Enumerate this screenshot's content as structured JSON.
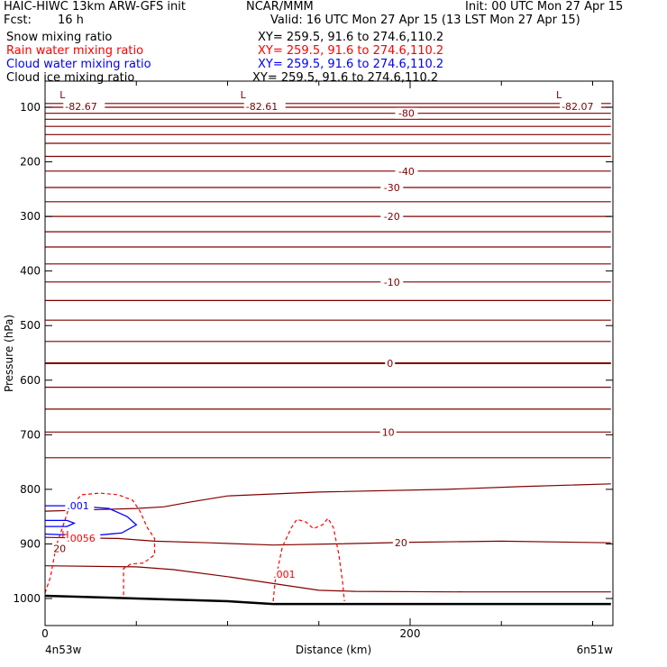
{
  "header": {
    "title_left": "HAIC-HIWC 13km ARW-GFS init",
    "org": "NCAR/MMM",
    "init": "Init: 00 UTC Mon 27 Apr 15",
    "fcst_label": "Fcst:",
    "fcst_value": "16 h",
    "valid": "Valid: 16 UTC Mon 27 Apr 15 (13 LST Mon 27 Apr 15)",
    "fields": [
      {
        "name": "Snow mixing ratio",
        "xy": "XY= 259.5, 91.6 to 274.6,110.2",
        "color": "#000000"
      },
      {
        "name": "Rain water mixing ratio",
        "xy": "XY= 259.5, 91.6 to 274.6,110.2",
        "color": "#ff0000"
      },
      {
        "name": "Cloud water mixing ratio",
        "xy": "XY= 259.5, 91.6 to 274.6,110.2",
        "color": "#0000ff"
      },
      {
        "name": "Cloud ice mixing ratio",
        "xy": "XY= 259.5, 91.6 to 274.6,110.2",
        "color": "#000000"
      }
    ]
  },
  "chart_data": {
    "type": "line",
    "xlabel": "Distance (km)",
    "ylabel": "Pressure (hPa)",
    "x_ticks": [
      0,
      200
    ],
    "x_minor_ticks": [
      50,
      100,
      150,
      250,
      300
    ],
    "xlim": [
      0,
      310
    ],
    "y_ticks": [
      100,
      200,
      300,
      400,
      500,
      600,
      700,
      800,
      900,
      1000
    ],
    "ylim": [
      1050,
      70
    ],
    "endpoints": {
      "left": "4n53w",
      "right": "6n51w"
    },
    "colors": {
      "temperature": "#800000",
      "rain": "#ff0000",
      "cloud_water": "#0000ff",
      "terrain": "#000000"
    },
    "temperature_isotherms": [
      {
        "points": [
          [
            0,
            93
          ],
          [
            310,
            93
          ]
        ]
      },
      {
        "points": [
          [
            0,
            100
          ],
          [
            310,
            100
          ]
        ]
      },
      {
        "points": [
          [
            0,
            111
          ],
          [
            310,
            111
          ]
        ]
      },
      {
        "points": [
          [
            0,
            122
          ],
          [
            310,
            122
          ]
        ]
      },
      {
        "points": [
          [
            0,
            135
          ],
          [
            310,
            135
          ]
        ]
      },
      {
        "points": [
          [
            0,
            150
          ],
          [
            310,
            150
          ]
        ]
      },
      {
        "points": [
          [
            0,
            166
          ],
          [
            310,
            166
          ]
        ]
      },
      {
        "points": [
          [
            0,
            190
          ],
          [
            310,
            190
          ]
        ]
      },
      {
        "points": [
          [
            0,
            217
          ],
          [
            310,
            217
          ]
        ]
      },
      {
        "points": [
          [
            0,
            247
          ],
          [
            310,
            247
          ]
        ]
      },
      {
        "points": [
          [
            0,
            273
          ],
          [
            310,
            273
          ]
        ]
      },
      {
        "points": [
          [
            0,
            300
          ],
          [
            310,
            300
          ]
        ]
      },
      {
        "points": [
          [
            0,
            328
          ],
          [
            310,
            328
          ]
        ]
      },
      {
        "points": [
          [
            0,
            356
          ],
          [
            310,
            356
          ]
        ]
      },
      {
        "points": [
          [
            0,
            387
          ],
          [
            310,
            387
          ]
        ]
      },
      {
        "points": [
          [
            0,
            420
          ],
          [
            310,
            420
          ]
        ]
      },
      {
        "points": [
          [
            0,
            454
          ],
          [
            310,
            454
          ]
        ]
      },
      {
        "points": [
          [
            0,
            490
          ],
          [
            310,
            490
          ]
        ]
      },
      {
        "points": [
          [
            0,
            529
          ],
          [
            310,
            529
          ]
        ]
      },
      {
        "points": [
          [
            0,
            569
          ],
          [
            310,
            569
          ]
        ]
      },
      {
        "points": [
          [
            0,
            613
          ],
          [
            310,
            613
          ]
        ]
      },
      {
        "points": [
          [
            0,
            653
          ],
          [
            310,
            653
          ]
        ]
      },
      {
        "points": [
          [
            0,
            695
          ],
          [
            310,
            695
          ]
        ]
      },
      {
        "points": [
          [
            0,
            742
          ],
          [
            310,
            742
          ]
        ]
      },
      {
        "points": [
          [
            0,
            840
          ],
          [
            50,
            835
          ],
          [
            65,
            832
          ],
          [
            80,
            823
          ],
          [
            100,
            812
          ],
          [
            150,
            805
          ],
          [
            220,
            800
          ],
          [
            260,
            795
          ],
          [
            310,
            790
          ]
        ]
      },
      {
        "points": [
          [
            0,
            888
          ],
          [
            40,
            890
          ],
          [
            60,
            895
          ],
          [
            90,
            898
          ],
          [
            125,
            902
          ],
          [
            160,
            900
          ],
          [
            200,
            897
          ],
          [
            250,
            895
          ],
          [
            310,
            898
          ]
        ]
      },
      {
        "points": [
          [
            0,
            940
          ],
          [
            50,
            942
          ],
          [
            70,
            947
          ],
          [
            100,
            960
          ],
          [
            130,
            975
          ],
          [
            150,
            985
          ],
          [
            170,
            987
          ],
          [
            230,
            988
          ],
          [
            310,
            988
          ]
        ]
      }
    ],
    "isotherm_labels": [
      {
        "text": "-80",
        "x": 198,
        "p": 111
      },
      {
        "text": "-40",
        "x": 198,
        "p": 217
      },
      {
        "text": "-30",
        "x": 190,
        "p": 247
      },
      {
        "text": "-20",
        "x": 190,
        "p": 300
      },
      {
        "text": "-10",
        "x": 190,
        "p": 420
      },
      {
        "text": "0",
        "x": 189,
        "p": 569
      },
      {
        "text": "10",
        "x": 188,
        "p": 695
      },
      {
        "text": "20",
        "x": 195,
        "p": 898
      },
      {
        "text": "20",
        "x": 8,
        "p": 908
      }
    ],
    "low_markers": [
      {
        "symbol": "L",
        "value": "-82.67",
        "x": 8,
        "p": 93
      },
      {
        "symbol": "L",
        "value": "-82.61",
        "x": 107,
        "p": 93
      },
      {
        "symbol": "L",
        "value": "-82.07",
        "x": 280,
        "p": 93
      }
    ],
    "rain_contours": [
      {
        "points": [
          [
            0,
            990
          ],
          [
            3,
            960
          ],
          [
            6,
            905
          ],
          [
            10,
            865
          ],
          [
            13,
            835
          ],
          [
            20,
            810
          ],
          [
            30,
            807
          ],
          [
            40,
            810
          ],
          [
            48,
            820
          ],
          [
            52,
            840
          ],
          [
            56,
            870
          ],
          [
            60,
            890
          ],
          [
            60,
            920
          ],
          [
            54,
            935
          ],
          [
            47,
            937
          ],
          [
            43,
            945
          ],
          [
            43,
            1000
          ]
        ]
      },
      {
        "points": [
          [
            125,
            1005
          ],
          [
            126,
            970
          ],
          [
            130,
            905
          ],
          [
            135,
            870
          ],
          [
            138,
            855
          ],
          [
            143,
            860
          ],
          [
            147,
            872
          ],
          [
            152,
            865
          ],
          [
            155,
            853
          ],
          [
            158,
            870
          ],
          [
            161,
            920
          ],
          [
            163,
            970
          ],
          [
            164,
            1005
          ]
        ]
      }
    ],
    "rain_labels": [
      {
        "text": ".0056",
        "x": 12,
        "p": 889
      },
      {
        "text": ".001",
        "x": 125,
        "p": 955
      }
    ],
    "cloud_water_contours": [
      {
        "points": [
          [
            0,
            830
          ],
          [
            15,
            830
          ],
          [
            35,
            835
          ],
          [
            45,
            850
          ],
          [
            50,
            865
          ],
          [
            42,
            880
          ],
          [
            25,
            885
          ],
          [
            0,
            882
          ]
        ]
      },
      {
        "points": [
          [
            0,
            857
          ],
          [
            12,
            857
          ],
          [
            16,
            862
          ],
          [
            12,
            868
          ],
          [
            0,
            868
          ]
        ]
      }
    ],
    "cloud_water_labels": [
      {
        "text": ".001",
        "x": 12,
        "p": 830
      },
      {
        "text": "H",
        "x": 9,
        "p": 883
      }
    ],
    "terrain": {
      "points": [
        [
          0,
          995
        ],
        [
          50,
          1000
        ],
        [
          100,
          1005
        ],
        [
          125,
          1010
        ],
        [
          170,
          1010
        ],
        [
          250,
          1010
        ],
        [
          310,
          1010
        ]
      ]
    }
  }
}
